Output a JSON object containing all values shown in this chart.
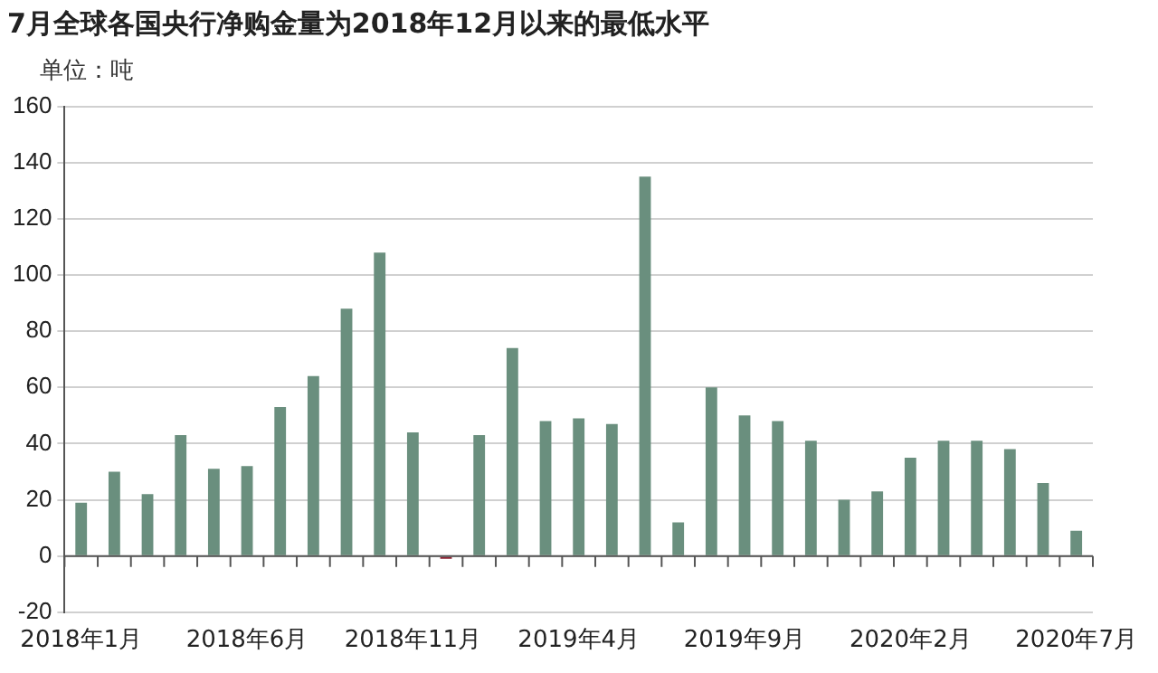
{
  "chart_data": {
    "type": "bar",
    "title": "7月全球各国央行净购金量为2018年12月以来的最低水平",
    "ylabel": "单位：吨",
    "categories": [
      "2018年1月",
      null,
      null,
      null,
      null,
      "2018年6月",
      null,
      null,
      null,
      null,
      "2018年11月",
      null,
      null,
      null,
      null,
      "2019年4月",
      null,
      null,
      null,
      null,
      "2019年9月",
      null,
      null,
      null,
      null,
      "2020年2月",
      null,
      null,
      null,
      null,
      "2020年7月"
    ],
    "values": [
      19,
      30,
      22,
      43,
      31,
      32,
      53,
      64,
      88,
      108,
      44,
      -1,
      43,
      74,
      48,
      49,
      47,
      135,
      12,
      60,
      50,
      48,
      41,
      20,
      23,
      35,
      41,
      41,
      38,
      26,
      9
    ],
    "colors": [
      "#6a8f7e",
      "#6a8f7e",
      "#6a8f7e",
      "#6a8f7e",
      "#6a8f7e",
      "#6a8f7e",
      "#6a8f7e",
      "#6a8f7e",
      "#6a8f7e",
      "#6a8f7e",
      "#6a8f7e",
      "#8b2232",
      "#6a8f7e",
      "#6a8f7e",
      "#6a8f7e",
      "#6a8f7e",
      "#6a8f7e",
      "#6a8f7e",
      "#6a8f7e",
      "#6a8f7e",
      "#6a8f7e",
      "#6a8f7e",
      "#6a8f7e",
      "#6a8f7e",
      "#6a8f7e",
      "#6a8f7e",
      "#6a8f7e",
      "#6a8f7e",
      "#6a8f7e",
      "#6a8f7e",
      "#6a8f7e"
    ],
    "ylim": [
      -20,
      160
    ],
    "yticks": [
      -20,
      0,
      20,
      40,
      60,
      80,
      100,
      120,
      140,
      160
    ],
    "grid": "y"
  }
}
